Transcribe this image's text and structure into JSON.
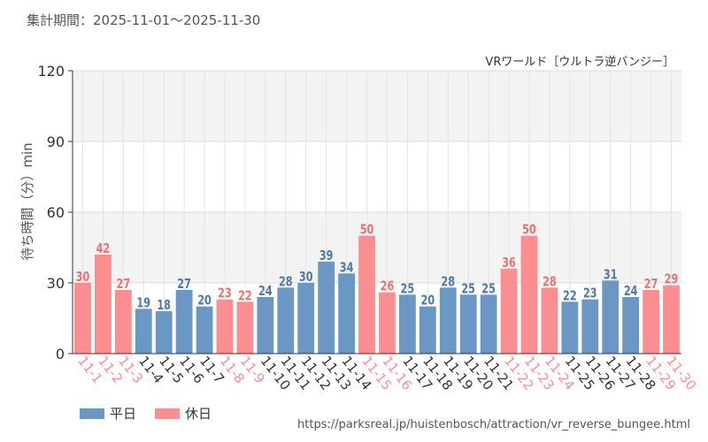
{
  "header": {
    "period_label": "集計期間：2025-11-01～2025-11-30"
  },
  "colors": {
    "weekday": "#6a97c4",
    "holiday": "#fb8e90",
    "weekday_label": "#4f7aa6",
    "holiday_label": "#f06f72"
  },
  "legend": {
    "weekday_label": "平日",
    "holiday_label": "休日"
  },
  "footer": {
    "source_url": "https://parksreal.jp/huistenbosch/attraction/vr_reverse_bungee.html"
  },
  "chart_data": {
    "type": "bar",
    "title": "VRワールド［ウルトラ逆バンジー］",
    "ylabel": "待ち時間（分）min",
    "xlabel": "",
    "ylim": [
      0,
      120
    ],
    "yticks": [
      0,
      30,
      60,
      90,
      120
    ],
    "categories": [
      "11-1",
      "11-2",
      "11-3",
      "11-4",
      "11-5",
      "11-6",
      "11-7",
      "11-8",
      "11-9",
      "11-10",
      "11-11",
      "11-12",
      "11-13",
      "11-14",
      "11-15",
      "11-16",
      "11-17",
      "11-18",
      "11-19",
      "11-20",
      "11-21",
      "11-22",
      "11-23",
      "11-24",
      "11-25",
      "11-26",
      "11-27",
      "11-28",
      "11-29",
      "11-30"
    ],
    "values": [
      30,
      42,
      27,
      19,
      18,
      27,
      20,
      23,
      22,
      24,
      28,
      30,
      39,
      34,
      50,
      26,
      25,
      20,
      28,
      25,
      25,
      36,
      50,
      28,
      22,
      23,
      31,
      24,
      27,
      29
    ],
    "day_type": [
      "holiday",
      "holiday",
      "holiday",
      "weekday",
      "weekday",
      "weekday",
      "weekday",
      "holiday",
      "holiday",
      "weekday",
      "weekday",
      "weekday",
      "weekday",
      "weekday",
      "holiday",
      "holiday",
      "weekday",
      "weekday",
      "weekday",
      "weekday",
      "weekday",
      "holiday",
      "holiday",
      "holiday",
      "weekday",
      "weekday",
      "weekday",
      "weekday",
      "holiday",
      "holiday"
    ]
  }
}
